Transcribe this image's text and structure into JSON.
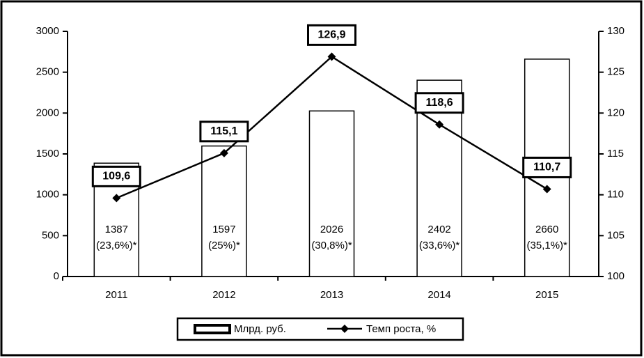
{
  "chart_data": {
    "type": "bar",
    "categories": [
      "2011",
      "2012",
      "2013",
      "2014",
      "2015"
    ],
    "series": [
      {
        "name": "Млрд. руб.",
        "color": "#ffffff",
        "values": [
          1387,
          1597,
          2026,
          2402,
          2660
        ],
        "annotations": [
          "(23,6%)*",
          "(25%)*",
          "(30,8%)*",
          "(33,6%)*",
          "(35,1%)*"
        ]
      },
      {
        "name": "Темп роста, %",
        "type": "line",
        "axis": "y2",
        "color": "#000000",
        "values": [
          109.6,
          115.1,
          126.9,
          118.6,
          110.7
        ],
        "value_labels": [
          "109,6",
          "115,1",
          "126,9",
          "118,6",
          "110,7"
        ]
      }
    ],
    "ylim": [
      0,
      3000
    ],
    "yticks": [
      0,
      500,
      1000,
      1500,
      2000,
      2500,
      3000
    ],
    "y2lim": [
      100,
      130
    ],
    "y2ticks": [
      100,
      105,
      110,
      115,
      120,
      125,
      130
    ],
    "legend": "bottom"
  }
}
